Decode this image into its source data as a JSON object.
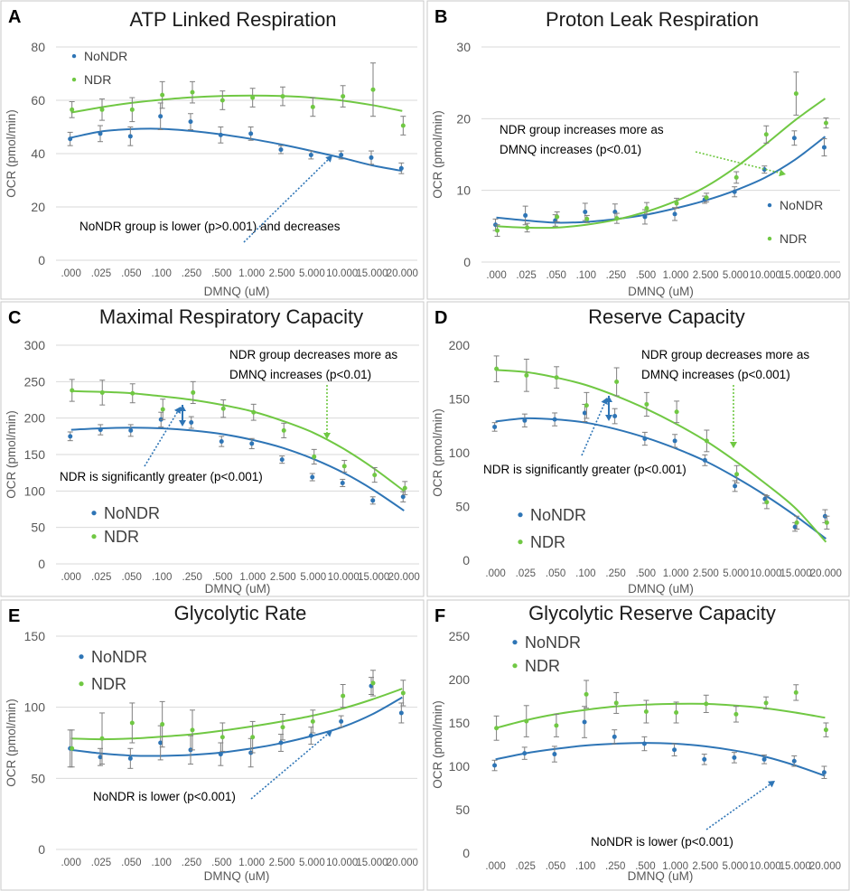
{
  "colors": {
    "nondr": "#2e75b6",
    "ndr": "#70c843",
    "errorbar": "#7f7f7f",
    "grid": "#d9d9d9"
  },
  "chart_data": [
    {
      "letter": "A",
      "type": "scatter",
      "title": "ATP Linked Respiration",
      "xlabel": "DMNQ (uM)",
      "ylabel": "OCR (pmol/min)",
      "categories": [
        ".000",
        ".025",
        ".050",
        ".100",
        ".250",
        ".500",
        "1.000",
        "2.500",
        "5.000",
        "10.000",
        "15.000",
        "20.000"
      ],
      "ylim": [
        0,
        80
      ],
      "yticks": [
        0,
        20,
        40,
        60,
        80
      ],
      "grid": true,
      "legend": "top-left",
      "series": [
        {
          "name": "NoNDR",
          "color": "nondr",
          "values": [
            45.5,
            47.5,
            46.5,
            54,
            52,
            47,
            47.5,
            41.5,
            39.5,
            39.5,
            38.5,
            34.5
          ],
          "errors": [
            2.5,
            3,
            3.5,
            5,
            3,
            3,
            2.5,
            1.5,
            1.5,
            1.5,
            2.5,
            2
          ],
          "trend": [
            46,
            48.3,
            49.2,
            49.3,
            48.5,
            47.2,
            45.5,
            43.4,
            41,
            38.4,
            35.6,
            33.5
          ]
        },
        {
          "name": "NDR",
          "color": "ndr",
          "values": [
            56.5,
            56.5,
            56.5,
            62,
            63,
            60,
            61,
            61.5,
            57.5,
            61.5,
            64,
            50.5
          ],
          "errors": [
            3,
            4,
            4.5,
            5,
            4,
            3.5,
            3.5,
            3.5,
            3.5,
            4,
            10,
            3.5
          ],
          "trend": [
            55.4,
            57.4,
            59,
            60.2,
            61.1,
            61.6,
            61.8,
            61.6,
            61,
            59.9,
            58.2,
            56
          ]
        }
      ],
      "annotations": [
        {
          "text": "NoNDR group is lower (p>0.001) and decreases",
          "arrow_color": "nondr"
        }
      ]
    },
    {
      "letter": "B",
      "type": "scatter",
      "title": "Proton Leak Respiration",
      "xlabel": "DMNQ (uM)",
      "ylabel": "OCR (pmol/min)",
      "categories": [
        ".000",
        ".025",
        ".050",
        ".100",
        ".250",
        ".500",
        "1.000",
        "2.500",
        "5.000",
        "10.000",
        "15.000",
        "20.000"
      ],
      "ylim": [
        0,
        30
      ],
      "yticks": [
        0,
        10,
        20,
        30
      ],
      "grid": true,
      "legend": "bottom-right",
      "series": [
        {
          "name": "NoNDR",
          "color": "nondr",
          "values": [
            5.2,
            6.5,
            5.8,
            7,
            7,
            6.3,
            6.7,
            8.7,
            9.8,
            12.9,
            17.3,
            16
          ],
          "errors": [
            0.8,
            1.3,
            0.8,
            1.2,
            1.1,
            1,
            0.9,
            0.5,
            0.7,
            0.5,
            1,
            1.2
          ],
          "trend": [
            6.2,
            5.8,
            5.5,
            5.6,
            6,
            6.6,
            7.5,
            8.6,
            10,
            11.8,
            14.3,
            17.5
          ]
        },
        {
          "name": "NDR",
          "color": "ndr",
          "values": [
            4.4,
            4.8,
            6.3,
            6,
            6.1,
            7.5,
            8.2,
            9,
            11.8,
            17.8,
            23.5,
            19.4
          ],
          "errors": [
            0.8,
            0.6,
            0.7,
            0.5,
            0.7,
            0.8,
            0.7,
            0.6,
            0.8,
            1.2,
            3,
            0.7
          ],
          "trend": [
            5,
            4.8,
            4.8,
            5.2,
            5.9,
            7,
            8.5,
            10.5,
            13.2,
            16.4,
            19.8,
            22.8
          ]
        }
      ],
      "annotations": [
        {
          "text": "NDR group increases  more as",
          "text2": "DMNQ increases (p<0.01)",
          "arrow_color": "ndr"
        }
      ]
    },
    {
      "letter": "C",
      "type": "scatter",
      "title": "Maximal Respiratory Capacity",
      "xlabel": "DMNQ (uM)",
      "ylabel": "OCR (pmol/min)",
      "categories": [
        ".000",
        ".025",
        ".050",
        ".100",
        ".250",
        ".500",
        "1.000",
        "2.500",
        "5.000",
        "10.000",
        "15.000",
        "20.000"
      ],
      "ylim": [
        0,
        300
      ],
      "yticks": [
        0,
        50,
        100,
        150,
        200,
        250,
        300
      ],
      "grid": true,
      "legend": "bottom-left",
      "series": [
        {
          "name": "NoNDR",
          "color": "nondr",
          "values": [
            175,
            184,
            183,
            198,
            194,
            168,
            165,
            143,
            119,
            111,
            87,
            92
          ],
          "errors": [
            6,
            7,
            8,
            10,
            8,
            7,
            7,
            5,
            5,
            5,
            5,
            7
          ],
          "trend": [
            184,
            186,
            187,
            186,
            183,
            178,
            170,
            159,
            144,
            125,
            101,
            73
          ]
        },
        {
          "name": "NDR",
          "color": "ndr",
          "values": [
            238,
            235,
            234,
            212,
            235,
            213,
            208,
            183,
            147,
            134,
            122,
            104
          ],
          "errors": [
            15,
            17,
            13,
            14,
            15,
            12,
            11,
            10,
            10,
            8,
            10,
            9
          ],
          "trend": [
            237,
            236,
            234,
            230,
            225,
            218,
            209,
            196,
            180,
            158,
            131,
            100
          ]
        }
      ],
      "annotations": [
        {
          "text": "NDR group decreases  more as",
          "text2": "DMNQ increases (p<0.01)",
          "arrow_color": "ndr"
        },
        {
          "text": "NDR is significantly greater (p<0.001)",
          "arrow_color": "nondr"
        }
      ]
    },
    {
      "letter": "D",
      "type": "scatter",
      "title": "Reserve Capacity",
      "xlabel": "DMNQ (uM)",
      "ylabel": "OCR (pmol/min)",
      "categories": [
        ".000",
        ".025",
        ".050",
        ".100",
        ".250",
        ".500",
        "1.000",
        "2.500",
        "5.000",
        "10.000",
        "15.000",
        "20.000"
      ],
      "ylim": [
        0,
        200
      ],
      "yticks": [
        0,
        50,
        100,
        150,
        200
      ],
      "grid": false,
      "legend": "bottom-left",
      "series": [
        {
          "name": "NoNDR",
          "color": "nondr",
          "values": [
            124,
            130,
            131,
            137,
            134,
            113,
            111,
            93,
            69,
            57,
            31,
            41
          ],
          "errors": [
            4,
            6,
            6,
            8,
            7,
            6,
            6,
            5,
            5,
            4,
            4,
            6
          ],
          "trend": [
            129,
            132,
            131,
            128,
            122,
            114,
            104,
            92,
            77,
            60,
            41,
            20
          ]
        },
        {
          "name": "NDR",
          "color": "ndr",
          "values": [
            178,
            172,
            170,
            144,
            166,
            145,
            138,
            111,
            80,
            54,
            35,
            35
          ],
          "errors": [
            12,
            15,
            10,
            12,
            13,
            11,
            10,
            10,
            8,
            6,
            6,
            6
          ],
          "trend": [
            177,
            175,
            170,
            163,
            153,
            141,
            127,
            111,
            92,
            71,
            48,
            17
          ]
        }
      ],
      "annotations": [
        {
          "text": "NDR group decreases more as",
          "text2": "DMNQ increases (p<0.001)",
          "arrow_color": "ndr"
        },
        {
          "text": "NDR is significantly greater (p<0.001)",
          "arrow_color": "nondr"
        }
      ]
    },
    {
      "letter": "E",
      "type": "scatter",
      "title": "Glycolytic Rate",
      "xlabel": "DMNQ (uM)",
      "ylabel": "OCR (pmol/min)",
      "categories": [
        ".000",
        ".025",
        ".050",
        ".100",
        ".250",
        ".500",
        "1.000",
        "2.500",
        "5.000",
        "10.000",
        "15.000",
        "20.000"
      ],
      "ylim": [
        0,
        150
      ],
      "yticks": [
        0,
        50,
        100,
        150
      ],
      "grid": true,
      "legend": "top-left",
      "series": [
        {
          "name": "NoNDR",
          "color": "nondr",
          "values": [
            71,
            65,
            64,
            75,
            70,
            67,
            68,
            75,
            80,
            90,
            115,
            96
          ],
          "errors": [
            13,
            6,
            7,
            12,
            10,
            8,
            10,
            6,
            6,
            4,
            6,
            7
          ],
          "trend": [
            70,
            67.5,
            66,
            65.8,
            66.5,
            68.2,
            71,
            74.8,
            79.8,
            86,
            95,
            107
          ]
        },
        {
          "name": "NDR",
          "color": "ndr",
          "values": [
            71,
            78,
            89,
            88,
            84,
            79,
            79,
            86,
            90,
            108,
            117,
            110
          ],
          "errors": [
            13,
            18,
            14,
            16,
            14,
            10,
            11,
            9,
            8,
            8,
            9,
            9
          ],
          "trend": [
            78,
            77.5,
            78,
            79.3,
            81,
            83.5,
            86.5,
            90,
            94,
            99,
            105.5,
            113
          ]
        }
      ],
      "annotations": [
        {
          "text": "NoNDR is lower (p<0.001)",
          "arrow_color": "nondr"
        }
      ]
    },
    {
      "letter": "F",
      "type": "scatter",
      "title": "Glycolytic Reserve Capacity",
      "xlabel": "DMNQ (uM)",
      "ylabel": "OCR (pmol/min)",
      "categories": [
        ".000",
        ".025",
        ".050",
        ".100",
        ".250",
        ".500",
        "1.000",
        "2.500",
        "5.000",
        "10.000",
        "15.000",
        "20.000"
      ],
      "ylim": [
        0,
        250
      ],
      "yticks": [
        0,
        50,
        100,
        150,
        200,
        250
      ],
      "grid": false,
      "legend": "top-left",
      "series": [
        {
          "name": "NoNDR",
          "color": "nondr",
          "values": [
            101,
            115,
            114,
            151,
            134,
            126,
            119,
            108,
            110,
            108,
            106,
            93
          ],
          "errors": [
            6,
            7,
            9,
            18,
            8,
            8,
            7,
            6,
            6,
            5,
            6,
            7
          ],
          "trend": [
            108,
            115,
            120,
            124,
            126,
            127,
            126,
            123,
            118,
            111,
            101,
            89
          ]
        },
        {
          "name": "NDR",
          "color": "ndr",
          "values": [
            144,
            152,
            147,
            183,
            173,
            163,
            162,
            172,
            160,
            173,
            185,
            142
          ],
          "errors": [
            14,
            18,
            13,
            16,
            12,
            13,
            12,
            10,
            9,
            7,
            9,
            8
          ],
          "trend": [
            144,
            153,
            160,
            165,
            169,
            171,
            172,
            172,
            170,
            167,
            162,
            156
          ]
        }
      ],
      "annotations": [
        {
          "text": "NoNDR is lower (p<0.001)",
          "arrow_color": "nondr"
        }
      ]
    }
  ]
}
